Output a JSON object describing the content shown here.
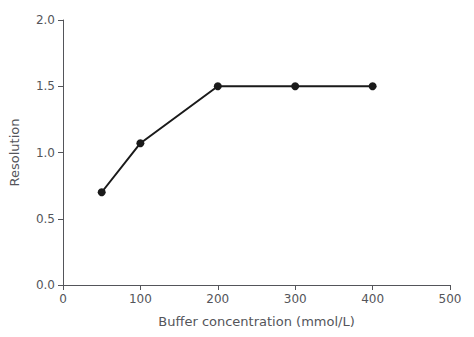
{
  "chart_data": {
    "type": "line",
    "x": [
      50,
      100,
      200,
      300,
      400
    ],
    "values": [
      0.7,
      1.07,
      1.5,
      1.5,
      1.5
    ],
    "xlabel": "Buffer concentration (mmol/L)",
    "ylabel": "Resolution",
    "xlim": [
      0,
      500
    ],
    "ylim": [
      0.0,
      2.0
    ],
    "xticks": [
      0,
      100,
      200,
      300,
      400,
      500
    ],
    "yticks": [
      {
        "value": 0.0,
        "label": "0.0"
      },
      0.5,
      {
        "value": 1.0,
        "label": "1.0"
      },
      1.5,
      {
        "value": 2.0,
        "label": "2.0"
      }
    ],
    "color": "#1a1a1a",
    "marker": "circle",
    "grid": false
  }
}
